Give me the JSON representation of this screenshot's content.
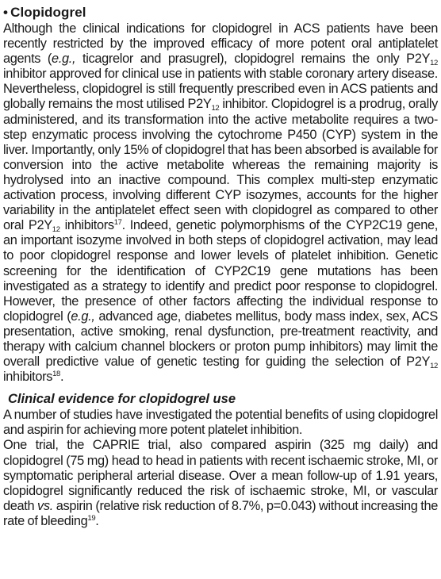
{
  "section": {
    "bullet": "•",
    "title": "Clopidogrel"
  },
  "paragraph1": {
    "s01": "Although the clinical indications for clopidogrel in ACS patients have been recently restricted by the improved efficacy of more potent oral antiplatelet agents (",
    "s02": "e.g.,",
    "s03": " ticagrelor and prasugrel), clopidogrel remains the only P2Y",
    "s04": "12",
    "s05": " inhibitor approved for clinical use in patients with stable coronary artery disease. Nevertheless, clopidogrel is still frequently prescribed even in ACS patients and globally remains the most utilised P2Y",
    "s06": "12",
    "s07": " inhibitor. Clopidogrel is a prodrug, orally administered, and its transformation into the active metabolite requires a two-step enzymatic process involving the cytochrome P450 (CYP) system in the liver. Importantly, only 15% of clopidogrel that has been absorbed is available for conversion into the active metabolite whereas the remaining majority is hydrolysed into an inactive compound. This complex multi-step enzymatic activation process, involving different CYP isozymes, accounts for the higher variability in the antiplatelet effect seen with clopidogrel as compared to other oral P2Y",
    "s08": "12",
    "s09": " inhibitors",
    "s10": "17",
    "s11": ". Indeed, genetic polymorphisms of the CYP2C19 gene, an important isozyme involved in both steps of clopidogrel activation, may lead to poor clopidogrel response and lower levels of platelet inhibition. Genetic screening for the identification of CYP2C19 gene mutations has been investigated as a strategy to identify and predict poor response to clopidogrel. However, the presence of other factors affecting the individual response to clopidogrel (",
    "s12": "e.g.,",
    "s13": " advanced age, diabetes mellitus, body mass index, sex, ACS presentation, active smoking, renal dysfunction, pre-treatment reactivity, and therapy with calcium channel blockers or proton pump inhibitors) may limit the overall predictive value of genetic testing for guiding the selection of P2Y",
    "s14": "12",
    "s15": " inhibitors",
    "s16": "18",
    "s17": "."
  },
  "subsection": {
    "title": "Clinical evidence for clopidogrel use"
  },
  "paragraph2": {
    "text": "A number of studies have investigated the potential benefits of using clopidogrel and aspirin for achieving more potent platelet inhibition."
  },
  "paragraph3": {
    "s01": "One trial, the CAPRIE trial, also compared aspirin (325 mg daily) and clopidogrel (75 mg) head to head in patients with recent ischaemic stroke, MI, or symptomatic peripheral arterial disease. Over a mean follow-up of 1.91 years, clopidogrel significantly reduced the risk of ischaemic stroke, MI, or vascular death ",
    "s02": "vs.",
    "s03": " aspirin (relative risk reduction of 8.7%, p=0.043) without increasing the rate of bleeding",
    "s04": "19",
    "s05": "."
  }
}
